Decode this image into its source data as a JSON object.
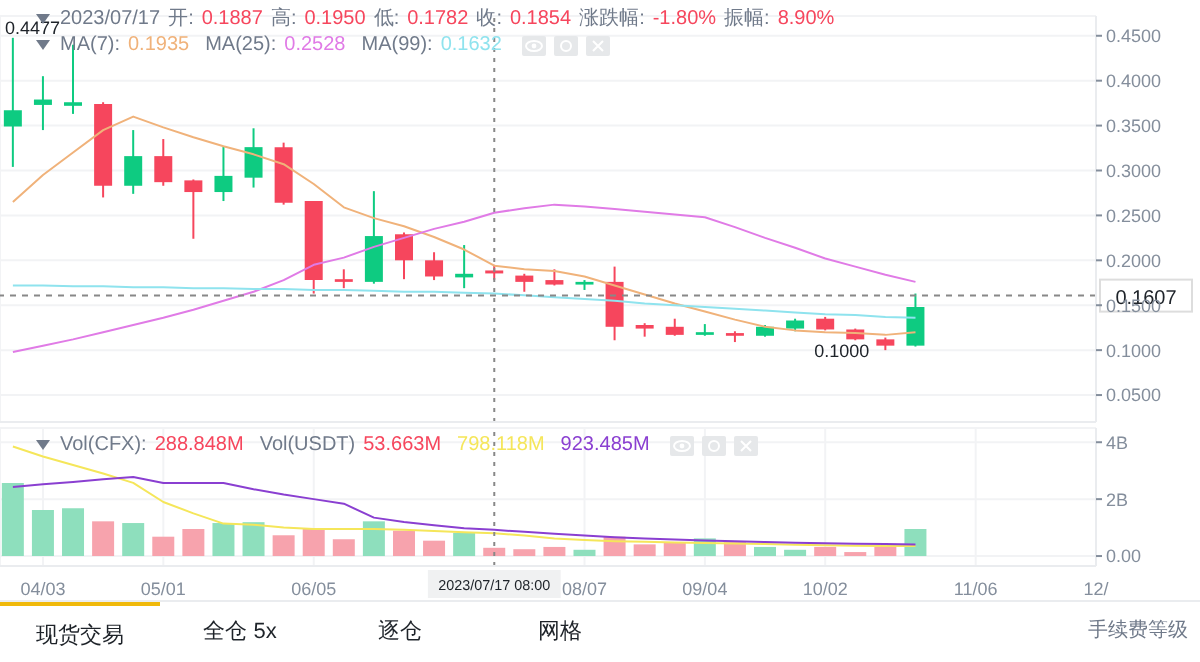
{
  "chart_data": [
    {
      "type": "candlestick",
      "title": "2023/07/17 开: 0.1887 高: 0.1950 低: 0.1782 收: 0.1854 涨跌幅: -1.80% 振幅: 8.90%",
      "x": [
        "2023-03-27",
        "2023-04-03",
        "2023-04-10",
        "2023-04-17",
        "2023-04-24",
        "2023-05-01",
        "2023-05-08",
        "2023-05-15",
        "2023-05-22",
        "2023-05-29",
        "2023-06-05",
        "2023-06-12",
        "2023-06-19",
        "2023-06-26",
        "2023-07-03",
        "2023-07-10",
        "2023-07-17",
        "2023-07-24",
        "2023-07-31",
        "2023-08-07",
        "2023-08-14",
        "2023-08-21",
        "2023-08-28",
        "2023-09-04",
        "2023-09-11",
        "2023-09-18",
        "2023-09-25",
        "2023-10-02",
        "2023-10-09",
        "2023-10-16",
        "2023-10-23"
      ],
      "ohlc": [
        [
          0.349,
          0.4477,
          0.304,
          0.367
        ],
        [
          0.373,
          0.405,
          0.345,
          0.379
        ],
        [
          0.372,
          0.44,
          0.363,
          0.376
        ],
        [
          0.374,
          0.376,
          0.27,
          0.283
        ],
        [
          0.283,
          0.345,
          0.274,
          0.316
        ],
        [
          0.316,
          0.335,
          0.283,
          0.287
        ],
        [
          0.289,
          0.29,
          0.224,
          0.276
        ],
        [
          0.276,
          0.327,
          0.266,
          0.294
        ],
        [
          0.292,
          0.347,
          0.281,
          0.326
        ],
        [
          0.326,
          0.331,
          0.262,
          0.264
        ],
        [
          0.266,
          0.266,
          0.163,
          0.178
        ],
        [
          0.179,
          0.19,
          0.169,
          0.176
        ],
        [
          0.176,
          0.277,
          0.174,
          0.227
        ],
        [
          0.229,
          0.231,
          0.179,
          0.2
        ],
        [
          0.2,
          0.209,
          0.178,
          0.182
        ],
        [
          0.181,
          0.217,
          0.169,
          0.185
        ],
        [
          0.1887,
          0.195,
          0.1782,
          0.1854
        ],
        [
          0.183,
          0.185,
          0.165,
          0.176
        ],
        [
          0.178,
          0.19,
          0.172,
          0.173
        ],
        [
          0.173,
          0.178,
          0.167,
          0.176
        ],
        [
          0.176,
          0.193,
          0.111,
          0.126
        ],
        [
          0.128,
          0.13,
          0.115,
          0.124
        ],
        [
          0.126,
          0.135,
          0.116,
          0.117
        ],
        [
          0.117,
          0.129,
          0.116,
          0.12
        ],
        [
          0.119,
          0.121,
          0.109,
          0.116
        ],
        [
          0.116,
          0.128,
          0.115,
          0.126
        ],
        [
          0.124,
          0.135,
          0.121,
          0.133
        ],
        [
          0.135,
          0.137,
          0.122,
          0.123
        ],
        [
          0.123,
          0.124,
          0.111,
          0.112
        ],
        [
          0.112,
          0.114,
          0.1,
          0.105
        ],
        [
          0.105,
          0.163,
          0.104,
          0.148
        ]
      ],
      "colors": [
        "#0ecb81",
        "#0ecb81",
        "#0ecb81",
        "#f6465d",
        "#0ecb81",
        "#f6465d",
        "#f6465d",
        "#0ecb81",
        "#0ecb81",
        "#f6465d",
        "#f6465d",
        "#f6465d",
        "#0ecb81",
        "#f6465d",
        "#f6465d",
        "#0ecb81",
        "#f6465d",
        "#f6465d",
        "#f6465d",
        "#0ecb81",
        "#f6465d",
        "#f6465d",
        "#f6465d",
        "#0ecb81",
        "#f6465d",
        "#0ecb81",
        "#0ecb81",
        "#f6465d",
        "#f6465d",
        "#f6465d",
        "#0ecb81"
      ],
      "series": [
        {
          "type": "line",
          "color": "#f0b27a",
          "values": [
            0.265,
            0.295,
            0.32,
            0.345,
            0.36,
            0.348,
            0.337,
            0.327,
            0.318,
            0.307,
            0.285,
            0.259,
            0.247,
            0.238,
            0.226,
            0.212,
            0.194,
            0.19,
            0.188,
            0.182,
            0.172,
            0.162,
            0.152,
            0.143,
            0.134,
            0.126,
            0.122,
            0.12,
            0.119,
            0.117,
            0.12
          ]
        },
        {
          "type": "line",
          "color": "#e07be6",
          "values": [
            0.098,
            0.105,
            0.112,
            0.12,
            0.128,
            0.136,
            0.145,
            0.155,
            0.165,
            0.178,
            0.195,
            0.203,
            0.215,
            0.225,
            0.235,
            0.243,
            0.253,
            0.258,
            0.262,
            0.26,
            0.257,
            0.254,
            0.251,
            0.248,
            0.237,
            0.225,
            0.214,
            0.202,
            0.193,
            0.184,
            0.176
          ]
        },
        {
          "type": "line",
          "color": "#8fe3ee",
          "values": [
            0.172,
            0.172,
            0.171,
            0.171,
            0.17,
            0.17,
            0.169,
            0.169,
            0.168,
            0.168,
            0.167,
            0.167,
            0.166,
            0.165,
            0.165,
            0.164,
            0.163,
            0.161,
            0.159,
            0.157,
            0.155,
            0.152,
            0.15,
            0.148,
            0.146,
            0.144,
            0.142,
            0.14,
            0.139,
            0.137,
            0.136
          ]
        }
      ],
      "xlim": [
        "2023-03-24",
        "2023-12-04"
      ],
      "xticks": [
        {
          "value": "2023-04-03",
          "label": null
        },
        {
          "value": "2023-05-01",
          "label": null
        },
        {
          "value": "2023-06-05",
          "label": null
        },
        {
          "value": "2023-08-07",
          "label": null
        },
        {
          "value": "2023-09-04",
          "label": null
        },
        {
          "value": "2023-10-02",
          "label": null
        },
        {
          "value": "2023-11-06",
          "label": null
        },
        {
          "value": "2023-12-04",
          "label": null
        }
      ],
      "ylim": [
        0.02,
        0.472
      ],
      "yticks": [
        {
          "value": 0.05,
          "label": "0.0500"
        },
        {
          "value": 0.1,
          "label": "0.1000"
        },
        {
          "value": 0.15,
          "label": "0.1500"
        },
        {
          "value": 0.2,
          "label": "0.2000"
        },
        {
          "value": 0.25,
          "label": "0.2500"
        },
        {
          "value": 0.3,
          "label": "0.3000"
        },
        {
          "value": 0.35,
          "label": "0.3500"
        },
        {
          "value": 0.4,
          "label": "0.4000"
        },
        {
          "value": 0.45,
          "label": "0.4500"
        }
      ],
      "tick_labels": "y",
      "grid": true,
      "marker": "none",
      "ref_lines": [
        {
          "axis": "x",
          "value": "2023-07-17"
        },
        {
          "axis": "y",
          "value": 0.1607,
          "label": "0.1607"
        }
      ],
      "annotations": [
        "MA(7): 0.1935",
        "MA(25): 0.2528",
        "MA(99): 0.1632",
        {
          "text": "0.4477",
          "x": "2023-03-27",
          "y": 0.4477
        },
        {
          "text": "0.1000",
          "x": "2023-10-16",
          "y": 0.1
        }
      ]
    },
    {
      "type": "bar",
      "x": [
        "2023-03-27",
        "2023-04-03",
        "2023-04-10",
        "2023-04-17",
        "2023-04-24",
        "2023-05-01",
        "2023-05-08",
        "2023-05-15",
        "2023-05-22",
        "2023-05-29",
        "2023-06-05",
        "2023-06-12",
        "2023-06-19",
        "2023-06-26",
        "2023-07-03",
        "2023-07-10",
        "2023-07-17",
        "2023-07-24",
        "2023-07-31",
        "2023-08-07",
        "2023-08-14",
        "2023-08-21",
        "2023-08-28",
        "2023-09-04",
        "2023-09-11",
        "2023-09-18",
        "2023-09-25",
        "2023-10-02",
        "2023-10-09",
        "2023-10-16",
        "2023-10-23"
      ],
      "series": [
        {
          "type": "bar",
          "values": [
            2.57,
            1.62,
            1.68,
            1.22,
            1.16,
            0.68,
            0.95,
            1.16,
            1.19,
            0.73,
            0.95,
            0.59,
            1.22,
            0.89,
            0.54,
            0.81,
            0.29,
            0.24,
            0.32,
            0.22,
            0.68,
            0.41,
            0.49,
            0.62,
            0.49,
            0.32,
            0.22,
            0.32,
            0.14,
            0.32,
            0.95
          ],
          "colors": [
            "#8edfbd",
            "#8edfbd",
            "#8edfbd",
            "#f7a3ad",
            "#8edfbd",
            "#f7a3ad",
            "#f7a3ad",
            "#8edfbd",
            "#8edfbd",
            "#f7a3ad",
            "#f7a3ad",
            "#f7a3ad",
            "#8edfbd",
            "#f7a3ad",
            "#f7a3ad",
            "#8edfbd",
            "#f7a3ad",
            "#f7a3ad",
            "#f7a3ad",
            "#8edfbd",
            "#f7a3ad",
            "#f7a3ad",
            "#f7a3ad",
            "#8edfbd",
            "#f7a3ad",
            "#8edfbd",
            "#8edfbd",
            "#f7a3ad",
            "#f7a3ad",
            "#f7a3ad",
            "#8edfbd"
          ]
        },
        {
          "type": "line",
          "color": "#f5e65a",
          "values": [
            3.85,
            3.5,
            3.2,
            2.9,
            2.57,
            1.9,
            1.5,
            1.14,
            1.1,
            1.0,
            0.95,
            0.95,
            0.95,
            0.92,
            0.88,
            0.84,
            0.8,
            0.72,
            0.62,
            0.56,
            0.52,
            0.5,
            0.48,
            0.46,
            0.44,
            0.42,
            0.4,
            0.38,
            0.36,
            0.35,
            0.35
          ]
        },
        {
          "type": "line",
          "color": "#8a3fd1",
          "values": [
            2.43,
            2.52,
            2.6,
            2.7,
            2.78,
            2.57,
            2.57,
            2.57,
            2.35,
            2.16,
            2.0,
            1.84,
            1.35,
            1.2,
            1.08,
            0.98,
            0.92,
            0.85,
            0.78,
            0.72,
            0.66,
            0.62,
            0.58,
            0.55,
            0.52,
            0.49,
            0.47,
            0.45,
            0.43,
            0.42,
            0.41
          ]
        }
      ],
      "xlim": [
        "2023-03-24",
        "2023-12-04"
      ],
      "xticks": [
        {
          "value": "2023-04-03",
          "label": "04/03"
        },
        {
          "value": "2023-05-01",
          "label": "05/01"
        },
        {
          "value": "2023-06-05",
          "label": "06/05"
        },
        {
          "value": "2023-08-07",
          "label": "08/07"
        },
        {
          "value": "2023-09-04",
          "label": "09/04"
        },
        {
          "value": "2023-10-02",
          "label": "10/02"
        },
        {
          "value": "2023-11-06",
          "label": "11/06"
        },
        {
          "value": "2023-12-04",
          "label": "12/"
        }
      ],
      "ylim": [
        -0.35,
        4.5
      ],
      "yticks": [
        {
          "value": 0,
          "label": "0.00"
        },
        {
          "value": 2,
          "label": "2B"
        },
        {
          "value": 4,
          "label": "4B"
        }
      ],
      "grid": true,
      "marker": "none",
      "ref_lines": [
        {
          "axis": "x",
          "value": "2023-07-17",
          "label": "2023/07/17 08:00"
        }
      ],
      "annotations": [
        "Vol(CFX): 288.848M",
        "Vol(USDT) 53.663M",
        "798.118M",
        "923.485M"
      ]
    },
    {
      "type": "other",
      "annotations": [
        "现货交易",
        "全仓 5x",
        "逐仓",
        "网格",
        "手续费等级"
      ]
    }
  ]
}
